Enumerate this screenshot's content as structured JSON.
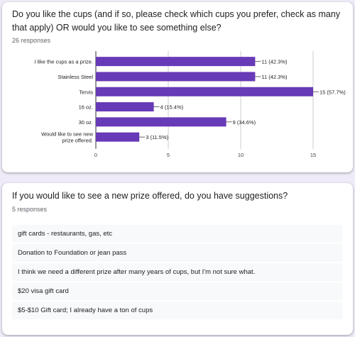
{
  "questions": [
    {
      "title": "Do you like the cups (and if so, please check which cups you prefer, check as many that apply) OR would you like to see something else?",
      "responses": "26 responses"
    },
    {
      "title": "If you would like to see a new prize offered, do you have suggestions?",
      "responses": "5 responses",
      "answers": [
        "gift cards - restaurants, gas, etc",
        "Donation to Foundation or jean pass",
        "I think we need a different prize after many years of cups, but I'm not sure what.",
        "$20 visa gift card",
        "$5-$10 Gift card; I already have a ton of cups"
      ]
    }
  ],
  "chart_data": {
    "type": "bar",
    "orientation": "horizontal",
    "categories": [
      "I like the cups as a prize.",
      "Stainless Steel",
      "Tervis",
      "16 oz.",
      "30 oz.",
      "Would like to see new prize offered."
    ],
    "values": [
      11,
      11,
      15,
      4,
      9,
      3
    ],
    "data_labels": [
      "11 (42.3%)",
      "11 (42.3%)",
      "15 (57.7%)",
      "4 (15.4%)",
      "9 (34.6%)",
      "3 (11.5%)"
    ],
    "xticks": [
      "0",
      "5",
      "10",
      "15"
    ],
    "xlim": [
      0,
      15
    ],
    "grid": true,
    "bar_color": "#673ab7"
  }
}
